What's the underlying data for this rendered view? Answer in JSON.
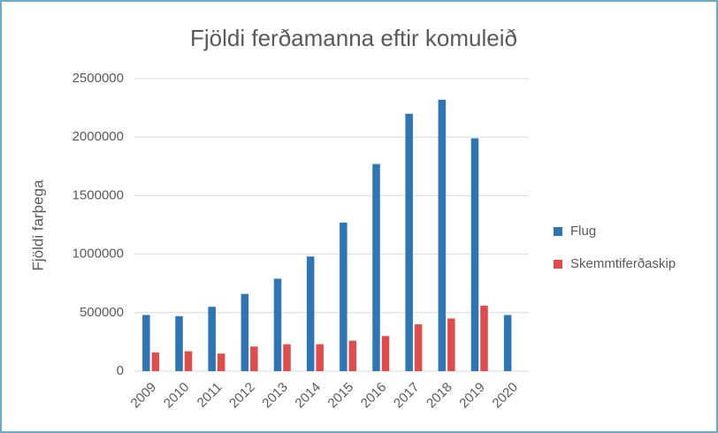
{
  "chart_data": {
    "type": "bar",
    "title": "Fjöldi ferðamanna eftir komuleið",
    "y_label": "Fjöldi farþega",
    "categories": [
      "2009",
      "2010",
      "2011",
      "2012",
      "2013",
      "2014",
      "2015",
      "2016",
      "2017",
      "2018",
      "2019",
      "2020"
    ],
    "series": [
      {
        "name": "Flug",
        "color": "#2e75b6",
        "values": [
          480000,
          470000,
          550000,
          660000,
          790000,
          980000,
          1270000,
          1770000,
          2200000,
          2320000,
          1990000,
          480000
        ]
      },
      {
        "name": "Skemmtiferðaskip",
        "color": "#e04b4b",
        "values": [
          160000,
          170000,
          150000,
          210000,
          230000,
          230000,
          260000,
          300000,
          400000,
          450000,
          560000,
          null
        ]
      }
    ],
    "ylim": [
      0,
      2500000
    ],
    "yticks": [
      0,
      500000,
      1000000,
      1500000,
      2000000,
      2500000
    ],
    "grid": true,
    "legend": "right"
  }
}
